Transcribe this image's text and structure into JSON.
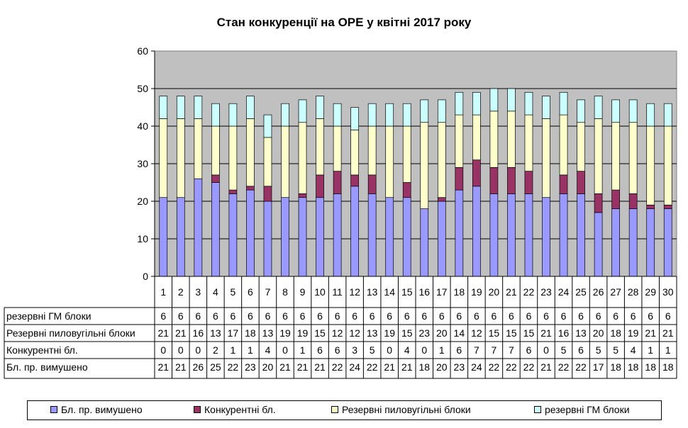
{
  "chart_data": {
    "type": "bar",
    "stacked": true,
    "title": "Стан конкуренції на ОРЕ  у квітні 2017 року",
    "categories": [
      "1",
      "2",
      "3",
      "4",
      "5",
      "6",
      "7",
      "8",
      "9",
      "10",
      "11",
      "12",
      "13",
      "14",
      "15",
      "16",
      "17",
      "18",
      "19",
      "20",
      "21",
      "22",
      "23",
      "24",
      "25",
      "26",
      "27",
      "28",
      "29",
      "30"
    ],
    "ylim": [
      0,
      60
    ],
    "yticks": [
      "0",
      "10",
      "20",
      "30",
      "40",
      "50",
      "60"
    ],
    "grid": true,
    "legend_position": "bottom",
    "series": [
      {
        "name": "Бл. пр. вимушено",
        "color": "#9999FF",
        "values": [
          21,
          21,
          26,
          25,
          22,
          23,
          20,
          21,
          21,
          21,
          22,
          24,
          22,
          21,
          21,
          18,
          20,
          23,
          24,
          22,
          22,
          22,
          21,
          22,
          22,
          17,
          18,
          18,
          18,
          18
        ]
      },
      {
        "name": "Конкурентні бл.",
        "color": "#993366",
        "values": [
          0,
          0,
          0,
          2,
          1,
          1,
          4,
          0,
          1,
          6,
          6,
          3,
          5,
          0,
          4,
          0,
          1,
          6,
          7,
          7,
          7,
          6,
          0,
          5,
          6,
          5,
          5,
          4,
          1,
          1
        ]
      },
      {
        "name": "Резервні пиловугільні блоки",
        "color": "#FFFFCC",
        "values": [
          21,
          21,
          16,
          13,
          17,
          18,
          13,
          19,
          19,
          15,
          12,
          12,
          13,
          19,
          15,
          23,
          20,
          14,
          12,
          15,
          15,
          15,
          21,
          16,
          13,
          20,
          18,
          19,
          21,
          21
        ]
      },
      {
        "name": "резервні ГМ блоки",
        "color": "#CCFFFF",
        "values": [
          6,
          6,
          6,
          6,
          6,
          6,
          6,
          6,
          6,
          6,
          6,
          6,
          6,
          6,
          6,
          6,
          6,
          6,
          6,
          6,
          6,
          6,
          6,
          6,
          6,
          6,
          6,
          6,
          6,
          6
        ]
      }
    ],
    "table_rows": [
      {
        "label": "резервні ГМ блоки",
        "series_index": 3
      },
      {
        "label": "Резервні пиловугільні блоки",
        "series_index": 2
      },
      {
        "label": "Конкурентні бл.",
        "series_index": 1
      },
      {
        "label": "Бл. пр. вимушено",
        "series_index": 0
      }
    ],
    "plot_background": "#C0C0C0"
  }
}
